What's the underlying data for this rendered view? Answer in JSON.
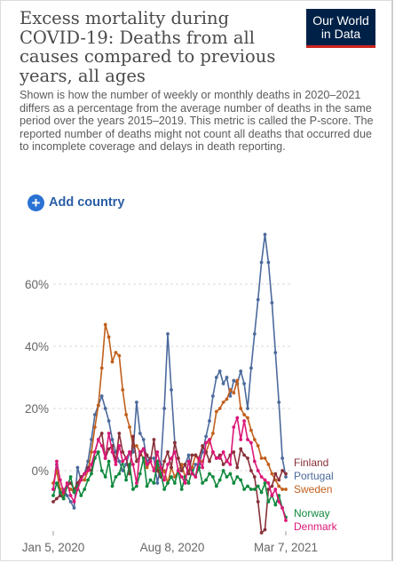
{
  "header": {
    "title": "Excess mortality during COVID-19: Deaths from all causes compared to previous years, all ages",
    "subtitle": "Shown is how the number of weekly or monthly deaths in 2020–2021 differs as a percentage from the average number of deaths in the same period over the years 2015–2019. This metric is called the P-score. The reported number of deaths might not count all deaths that occurred due to incomplete coverage and delays in death reporting.",
    "logo_line1": "Our World",
    "logo_line2": "in Data"
  },
  "controls": {
    "add_country_label": "Add country",
    "add_icon": "plus-circle-icon"
  },
  "colors": {
    "Finland": "#883039",
    "Portugal": "#4c6a9c",
    "Sweden": "#c15f1c",
    "Norway": "#10893e",
    "Denmark": "#dc1778"
  },
  "chart_data": {
    "type": "line",
    "title": "Excess mortality during COVID-19: Deaths from all causes compared to previous years, all ages",
    "xlabel": "",
    "ylabel": "",
    "x_start": "Jan 5, 2020",
    "x_end": "Mar 7, 2021",
    "x_tick_labels": [
      "Jan 5, 2020",
      "Aug 8, 2020",
      "Mar 7, 2021"
    ],
    "y_tick_labels": [
      "0%",
      "20%",
      "40%",
      "60%"
    ],
    "y_ticks": [
      0,
      20,
      40,
      60
    ],
    "ylim": [
      -22,
      78
    ],
    "grid": true,
    "legend_position": "right, at line ends",
    "series": [
      {
        "name": "Portugal",
        "values": [
          -6,
          2,
          -8,
          -6,
          -8,
          -10,
          -12,
          1,
          -3,
          -1,
          3,
          10,
          18,
          21,
          24,
          20,
          16,
          10,
          6,
          3,
          0,
          2,
          6,
          6,
          22,
          12,
          10,
          3,
          4,
          4,
          -4,
          2,
          20,
          44,
          26,
          9,
          4,
          0,
          2,
          5,
          -1,
          2,
          2,
          6,
          11,
          16,
          24,
          30,
          32,
          28,
          30,
          24,
          29,
          28,
          32,
          28,
          20,
          33,
          44,
          55,
          67,
          76,
          67,
          54,
          38,
          22,
          4,
          -2
        ]
      },
      {
        "name": "Sweden",
        "values": [
          -4,
          0,
          -6,
          -8,
          -5,
          -6,
          -7,
          -4,
          -3,
          -3,
          0,
          6,
          14,
          21,
          33,
          47,
          43,
          35,
          38,
          37,
          26,
          18,
          14,
          8,
          8,
          6,
          4,
          1,
          3,
          0,
          2,
          -2,
          0,
          -4,
          1,
          -2,
          0,
          2,
          -2,
          0,
          1,
          5,
          3,
          3,
          6,
          9,
          12,
          19,
          20,
          22,
          23,
          26,
          25,
          29,
          20,
          18,
          17,
          13,
          10,
          8,
          4,
          4,
          2,
          -1,
          -3,
          -5,
          -6,
          -6
        ]
      },
      {
        "name": "Finland",
        "values": [
          -10,
          -9,
          -8,
          -9,
          -5,
          -4,
          -6,
          -4,
          -2,
          -1,
          1,
          0,
          6,
          10,
          12,
          4,
          7,
          8,
          3,
          12,
          6,
          4,
          -1,
          11,
          3,
          5,
          7,
          5,
          3,
          10,
          0,
          -2,
          3,
          6,
          1,
          9,
          4,
          0,
          2,
          -1,
          5,
          5,
          4,
          8,
          6,
          3,
          6,
          4,
          5,
          2,
          3,
          5,
          6,
          1,
          7,
          5,
          4,
          0,
          -2,
          -10,
          -20,
          -19,
          -6,
          -5,
          -1,
          -3,
          0,
          -1
        ]
      },
      {
        "name": "Norway",
        "values": [
          -8,
          -4,
          -7,
          -9,
          -5,
          -2,
          -7,
          -5,
          -8,
          -6,
          -3,
          -1,
          4,
          6,
          0,
          -2,
          3,
          -5,
          -2,
          -1,
          3,
          -3,
          2,
          -6,
          -5,
          -1,
          4,
          -5,
          -3,
          -4,
          3,
          -1,
          -6,
          -4,
          -2,
          -4,
          0,
          -6,
          -2,
          -4,
          0,
          -2,
          1,
          -4,
          -3,
          -1,
          -2,
          -5,
          -3,
          0,
          -2,
          -1,
          -4,
          -2,
          -3,
          -6,
          -5,
          -6,
          -6,
          -5,
          -7,
          -4,
          -10,
          -8,
          -11,
          -8,
          -12,
          -15
        ]
      },
      {
        "name": "Denmark",
        "values": [
          -6,
          3,
          -3,
          -7,
          -4,
          -8,
          -10,
          -6,
          -3,
          -1,
          0,
          2,
          6,
          10,
          8,
          4,
          12,
          6,
          2,
          8,
          3,
          4,
          6,
          2,
          -4,
          6,
          7,
          2,
          3,
          0,
          6,
          1,
          -3,
          2,
          4,
          6,
          0,
          -2,
          -4,
          3,
          -1,
          -2,
          4,
          1,
          9,
          10,
          6,
          4,
          4,
          6,
          3,
          2,
          14,
          17,
          10,
          16,
          10,
          9,
          3,
          0,
          -2,
          -3,
          -4,
          -8,
          -6,
          -10,
          -12,
          -16
        ]
      }
    ]
  }
}
